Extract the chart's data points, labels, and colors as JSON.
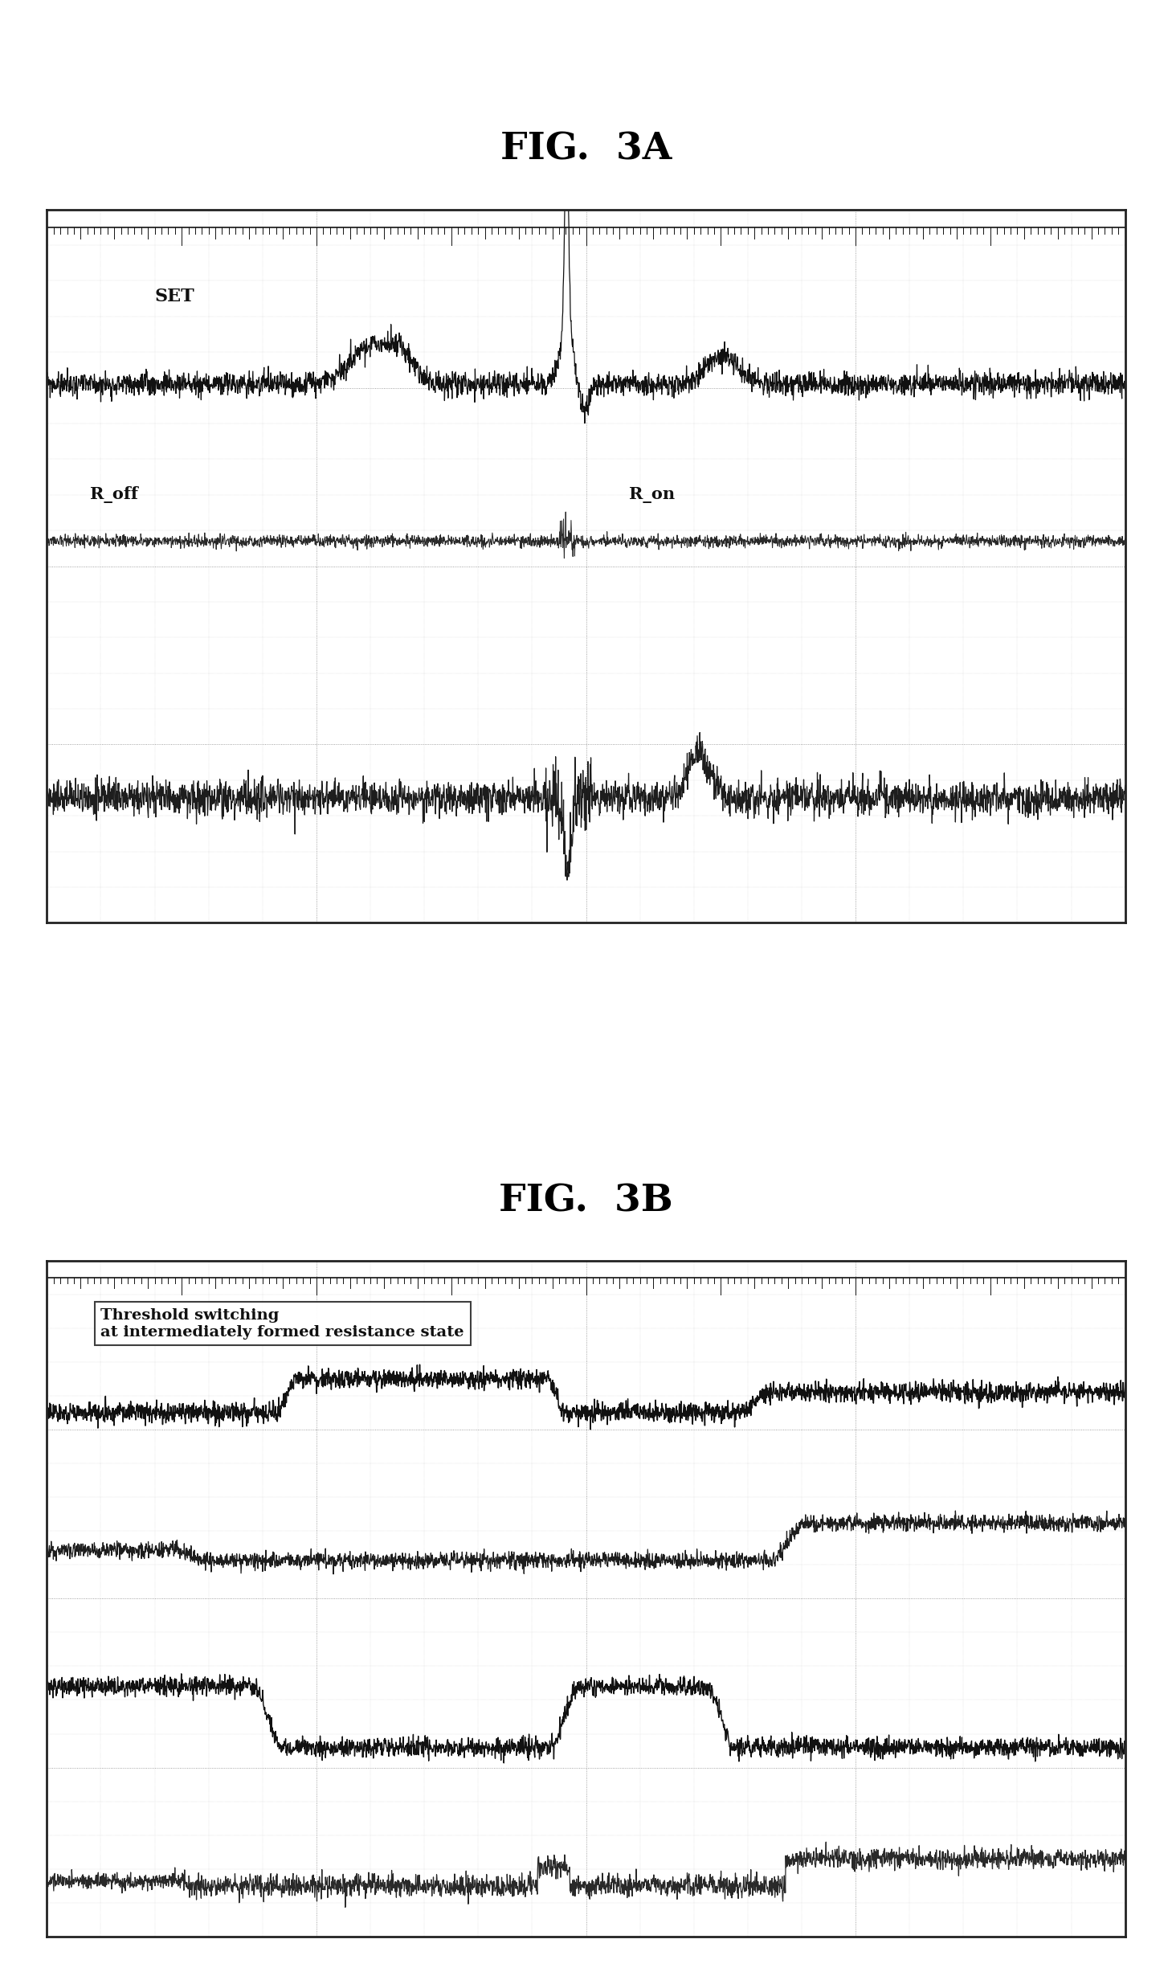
{
  "fig_title_A": "FIG.  3A",
  "fig_title_B": "FIG.  3B",
  "label_SET": "SET",
  "label_R_off": "R_off",
  "label_R_on": "R_on",
  "label_threshold": "Threshold switching\nat intermediately formed resistance state",
  "bg_color": "#ffffff",
  "plot_bg": "#ffffff",
  "border_color": "#222222",
  "grid_color": "#555555",
  "signal_color": "#111111",
  "n_points": 3000,
  "title_fontsize": 34,
  "annotation_fontsize": 16,
  "grid_major": 4,
  "grid_minor": 5
}
